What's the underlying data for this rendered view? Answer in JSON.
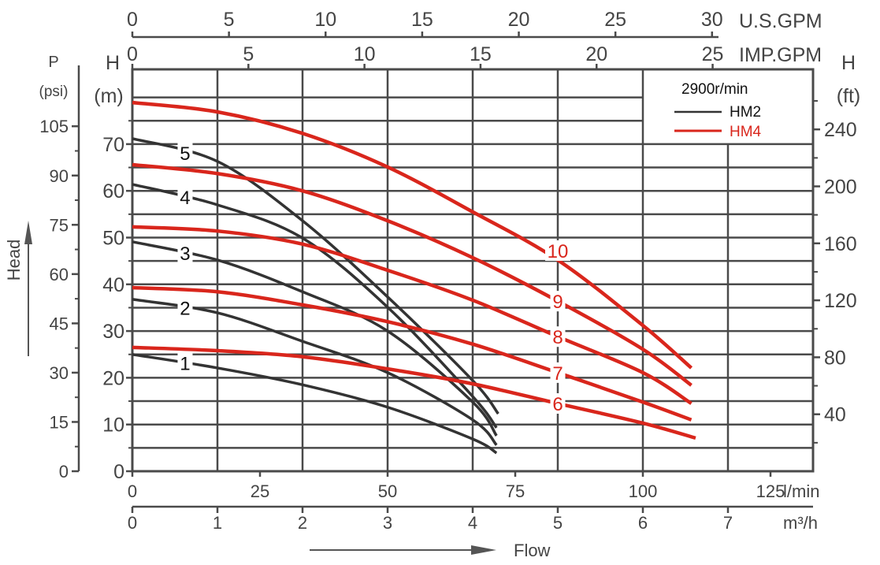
{
  "chart_data": {
    "type": "line",
    "title": "",
    "speed_label": "2900r/min",
    "xlabel": "Flow",
    "ylabel": "Head",
    "x_unit": "m³/h",
    "xlim": [
      0,
      8
    ],
    "ylim": [
      0,
      86
    ],
    "grid": true,
    "legend_placement": "top-right",
    "axes": {
      "usgpm": {
        "label": "U.S.GPM",
        "ticks": [
          0,
          5,
          10,
          15,
          20,
          25,
          30
        ]
      },
      "impgpm": {
        "label": "IMP.GPM",
        "ticks": [
          0,
          5,
          10,
          15,
          20,
          25
        ]
      },
      "lmin": {
        "label": "l/min",
        "ticks": [
          0,
          25,
          50,
          75,
          100,
          125
        ]
      },
      "m3h": {
        "label": "m³/h",
        "ticks": [
          0,
          1,
          2,
          3,
          4,
          5,
          6,
          7
        ]
      },
      "psi": {
        "label_top": "P",
        "label_unit": "(psi)",
        "ticks": [
          0,
          15,
          30,
          45,
          60,
          75,
          90,
          105
        ]
      },
      "head_m": {
        "label_top": "H",
        "label_unit": "(m)",
        "ticks": [
          0,
          10,
          20,
          30,
          40,
          50,
          60,
          70
        ]
      },
      "head_ft": {
        "label_top": "H",
        "label_unit": "(ft)",
        "ticks": [
          40,
          80,
          120,
          160,
          200,
          240
        ]
      }
    },
    "legend": [
      {
        "name": "HM2",
        "color": "#333333"
      },
      {
        "name": "HM4",
        "color": "#d9261c"
      }
    ],
    "series": [
      {
        "name": "1",
        "model": "HM2",
        "label_q": 0.62,
        "x": [
          0,
          1,
          2,
          3,
          4,
          4.28
        ],
        "y": [
          25.0,
          22.1,
          18.5,
          13.7,
          6.9,
          3.9
        ]
      },
      {
        "name": "2",
        "model": "HM2",
        "label_q": 0.62,
        "x": [
          0,
          1,
          2,
          3,
          4,
          4.28
        ],
        "y": [
          36.8,
          33.9,
          27.8,
          21.1,
          11.0,
          5.6
        ]
      },
      {
        "name": "3",
        "model": "HM2",
        "label_q": 0.62,
        "x": [
          0,
          1,
          2,
          3,
          4,
          4.28
        ],
        "y": [
          49.1,
          45.2,
          38.4,
          30.0,
          14.8,
          7.6
        ]
      },
      {
        "name": "4",
        "model": "HM2",
        "label_q": 0.62,
        "x": [
          0,
          1,
          2,
          3,
          4,
          4.28
        ],
        "y": [
          61.4,
          57.0,
          49.9,
          35.1,
          16.0,
          9.3
        ]
      },
      {
        "name": "5",
        "model": "HM2",
        "label_q": 0.62,
        "x": [
          0,
          1,
          2,
          3,
          4,
          4.3
        ],
        "y": [
          71.2,
          66.3,
          53.6,
          37.3,
          19.4,
          12.3
        ]
      },
      {
        "name": "6",
        "model": "HM4",
        "label_q": 5.0,
        "x": [
          0,
          1,
          2,
          3,
          4,
          5,
          6,
          6.62
        ],
        "y": [
          26.5,
          25.8,
          24.5,
          21.9,
          18.7,
          14.5,
          10.3,
          7.1
        ]
      },
      {
        "name": "7",
        "model": "HM4",
        "label_q": 5.0,
        "x": [
          0,
          1,
          2,
          3,
          4,
          5,
          6,
          6.57
        ],
        "y": [
          39.3,
          38.4,
          35.6,
          32.0,
          27.2,
          21.1,
          14.8,
          11.0
        ]
      },
      {
        "name": "8",
        "model": "HM4",
        "label_q": 5.0,
        "x": [
          0,
          1,
          2,
          3,
          4,
          5,
          6,
          6.57
        ],
        "y": [
          52.3,
          51.4,
          48.6,
          43.0,
          36.6,
          28.8,
          21.1,
          14.5
        ]
      },
      {
        "name": "9",
        "model": "HM4",
        "label_q": 5.0,
        "x": [
          0,
          1,
          2,
          3,
          4,
          5,
          6,
          6.57
        ],
        "y": [
          65.6,
          63.7,
          60.0,
          53.6,
          45.7,
          36.4,
          26.1,
          18.4
        ]
      },
      {
        "name": "10",
        "model": "HM4",
        "label_q": 5.0,
        "x": [
          0,
          1,
          2,
          3,
          4,
          5,
          6,
          6.57
        ],
        "y": [
          78.9,
          76.9,
          72.3,
          65.1,
          55.5,
          45.2,
          31.2,
          22.1
        ]
      }
    ]
  }
}
